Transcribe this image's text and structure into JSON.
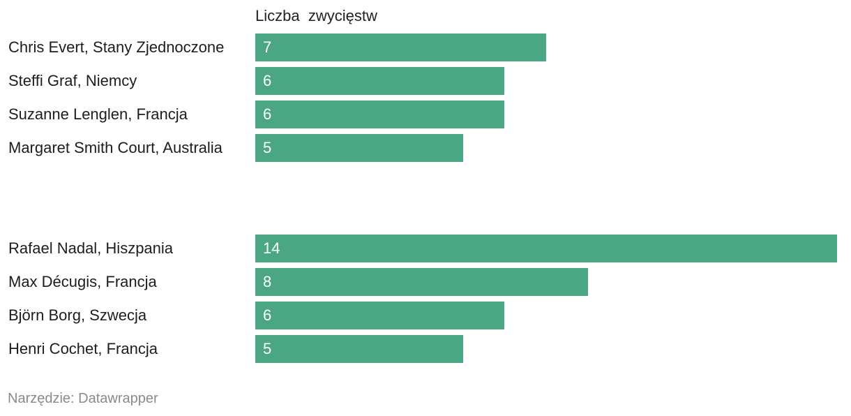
{
  "chart_data": {
    "type": "bar",
    "orientation": "horizontal",
    "column_header": "Liczba  zwycięstw",
    "groups": [
      {
        "categories": [
          "Chris Evert, Stany Zjednoczone",
          "Steffi Graf, Niemcy",
          "Suzanne Lenglen, Francja",
          "Margaret Smith Court, Australia"
        ],
        "values": [
          7,
          6,
          6,
          5
        ]
      },
      {
        "categories": [
          "Rafael Nadal, Hiszpania",
          "Max Décugis, Francja",
          "Björn Borg, Szwecja",
          "Henri Cochet, Francja"
        ],
        "values": [
          14,
          8,
          6,
          5
        ]
      }
    ],
    "xlim": [
      0,
      14
    ],
    "bar_color": "#4aa683",
    "grid": false,
    "legend": "none"
  },
  "footer": {
    "source": "Narzędzie: Datawrapper"
  }
}
